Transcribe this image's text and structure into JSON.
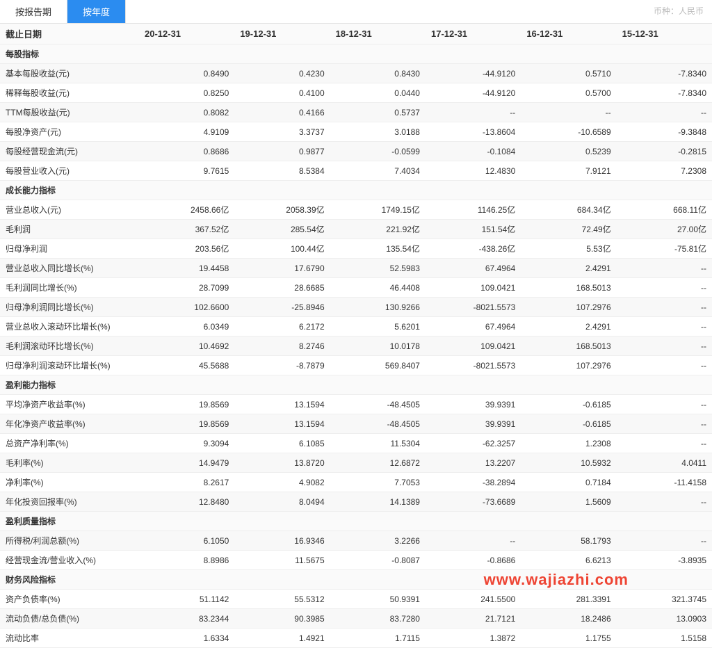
{
  "tabs": {
    "by_report": "按报告期",
    "by_year": "按年度"
  },
  "currency_note": "币种：人民币",
  "header": {
    "date_label": "截止日期",
    "dates": [
      "20-12-31",
      "19-12-31",
      "18-12-31",
      "17-12-31",
      "16-12-31",
      "15-12-31"
    ]
  },
  "watermark": "www.wajiazhi.com",
  "sections": [
    {
      "title": "每股指标",
      "rows": [
        {
          "label": "基本每股收益(元)",
          "vals": [
            "0.8490",
            "0.4230",
            "0.8430",
            "-44.9120",
            "0.5710",
            "-7.8340"
          ]
        },
        {
          "label": "稀释每股收益(元)",
          "vals": [
            "0.8250",
            "0.4100",
            "0.0440",
            "-44.9120",
            "0.5700",
            "-7.8340"
          ]
        },
        {
          "label": "TTM每股收益(元)",
          "vals": [
            "0.8082",
            "0.4166",
            "0.5737",
            "--",
            "--",
            "--"
          ]
        },
        {
          "label": "每股净资产(元)",
          "vals": [
            "4.9109",
            "3.3737",
            "3.0188",
            "-13.8604",
            "-10.6589",
            "-9.3848"
          ]
        },
        {
          "label": "每股经营现金流(元)",
          "vals": [
            "0.8686",
            "0.9877",
            "-0.0599",
            "-0.1084",
            "0.5239",
            "-0.2815"
          ]
        },
        {
          "label": "每股营业收入(元)",
          "vals": [
            "9.7615",
            "8.5384",
            "7.4034",
            "12.4830",
            "7.9121",
            "7.2308"
          ]
        }
      ]
    },
    {
      "title": "成长能力指标",
      "rows": [
        {
          "label": "营业总收入(元)",
          "vals": [
            "2458.66亿",
            "2058.39亿",
            "1749.15亿",
            "1146.25亿",
            "684.34亿",
            "668.11亿"
          ]
        },
        {
          "label": "毛利润",
          "vals": [
            "367.52亿",
            "285.54亿",
            "221.92亿",
            "151.54亿",
            "72.49亿",
            "27.00亿"
          ]
        },
        {
          "label": "归母净利润",
          "vals": [
            "203.56亿",
            "100.44亿",
            "135.54亿",
            "-438.26亿",
            "5.53亿",
            "-75.81亿"
          ]
        },
        {
          "label": "营业总收入同比增长(%)",
          "vals": [
            "19.4458",
            "17.6790",
            "52.5983",
            "67.4964",
            "2.4291",
            "--"
          ]
        },
        {
          "label": "毛利润同比增长(%)",
          "vals": [
            "28.7099",
            "28.6685",
            "46.4408",
            "109.0421",
            "168.5013",
            "--"
          ]
        },
        {
          "label": "归母净利润同比增长(%)",
          "vals": [
            "102.6600",
            "-25.8946",
            "130.9266",
            "-8021.5573",
            "107.2976",
            "--"
          ]
        },
        {
          "label": "营业总收入滚动环比增长(%)",
          "vals": [
            "6.0349",
            "6.2172",
            "5.6201",
            "67.4964",
            "2.4291",
            "--"
          ]
        },
        {
          "label": "毛利润滚动环比增长(%)",
          "vals": [
            "10.4692",
            "8.2746",
            "10.0178",
            "109.0421",
            "168.5013",
            "--"
          ]
        },
        {
          "label": "归母净利润滚动环比增长(%)",
          "vals": [
            "45.5688",
            "-8.7879",
            "569.8407",
            "-8021.5573",
            "107.2976",
            "--"
          ]
        }
      ]
    },
    {
      "title": "盈利能力指标",
      "rows": [
        {
          "label": "平均净资产收益率(%)",
          "vals": [
            "19.8569",
            "13.1594",
            "-48.4505",
            "39.9391",
            "-0.6185",
            "--"
          ]
        },
        {
          "label": "年化净资产收益率(%)",
          "vals": [
            "19.8569",
            "13.1594",
            "-48.4505",
            "39.9391",
            "-0.6185",
            "--"
          ]
        },
        {
          "label": "总资产净利率(%)",
          "vals": [
            "9.3094",
            "6.1085",
            "11.5304",
            "-62.3257",
            "1.2308",
            "--"
          ]
        },
        {
          "label": "毛利率(%)",
          "vals": [
            "14.9479",
            "13.8720",
            "12.6872",
            "13.2207",
            "10.5932",
            "4.0411"
          ]
        },
        {
          "label": "净利率(%)",
          "vals": [
            "8.2617",
            "4.9082",
            "7.7053",
            "-38.2894",
            "0.7184",
            "-11.4158"
          ]
        },
        {
          "label": "年化投资回报率(%)",
          "vals": [
            "12.8480",
            "8.0494",
            "14.1389",
            "-73.6689",
            "1.5609",
            "--"
          ]
        }
      ]
    },
    {
      "title": "盈利质量指标",
      "rows": [
        {
          "label": "所得税/利润总额(%)",
          "vals": [
            "6.1050",
            "16.9346",
            "3.2266",
            "--",
            "58.1793",
            "--"
          ]
        },
        {
          "label": "经营现金流/营业收入(%)",
          "vals": [
            "8.8986",
            "11.5675",
            "-0.8087",
            "-0.8686",
            "6.6213",
            "-3.8935"
          ]
        }
      ]
    },
    {
      "title": "财务风险指标",
      "rows": [
        {
          "label": "资产负债率(%)",
          "vals": [
            "51.1142",
            "55.5312",
            "50.9391",
            "241.5500",
            "281.3391",
            "321.3745"
          ]
        },
        {
          "label": "流动负债/总负债(%)",
          "vals": [
            "83.2344",
            "90.3985",
            "83.7280",
            "21.7121",
            "18.2486",
            "13.0903"
          ]
        },
        {
          "label": "流动比率",
          "vals": [
            "1.6334",
            "1.4921",
            "1.7115",
            "1.3872",
            "1.1755",
            "1.5158"
          ]
        }
      ]
    }
  ]
}
